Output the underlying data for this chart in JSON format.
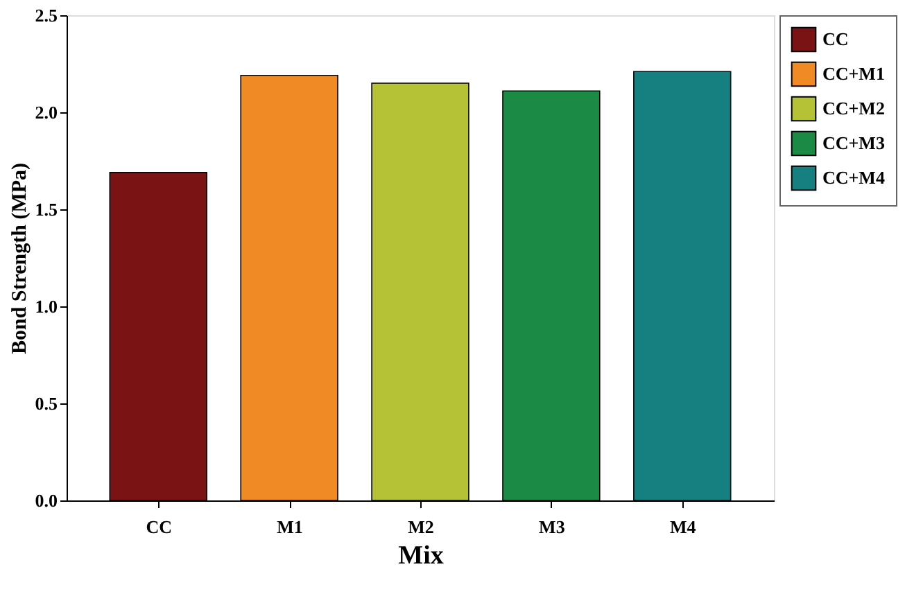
{
  "chart_data": {
    "type": "bar",
    "xlabel": "Mix",
    "ylabel": "Bond Strength (MPa)",
    "categories": [
      "CC",
      "M1",
      "M2",
      "M3",
      "M4"
    ],
    "series": [
      {
        "name": "CC",
        "color": "#7a1414",
        "values": [
          1.69,
          null,
          null,
          null,
          null
        ]
      },
      {
        "name": "CC+M1",
        "color": "#f08a24",
        "values": [
          null,
          2.19,
          null,
          null,
          null
        ]
      },
      {
        "name": "CC+M2",
        "color": "#b5c236",
        "values": [
          null,
          null,
          2.15,
          null,
          null
        ]
      },
      {
        "name": "CC+M3",
        "color": "#1b8a45",
        "values": [
          null,
          null,
          null,
          2.11,
          null
        ]
      },
      {
        "name": "CC+M4",
        "color": "#168080",
        "values": [
          null,
          null,
          null,
          null,
          2.21
        ]
      }
    ],
    "ylim": [
      0,
      2.5
    ],
    "yticks": [
      {
        "value": 0,
        "label": "0.0"
      },
      {
        "value": 0.5,
        "label": "0.5"
      },
      {
        "value": 1,
        "label": "1.0"
      },
      {
        "value": 1.5,
        "label": "1.5"
      },
      {
        "value": 2,
        "label": "2.0"
      },
      {
        "value": 2.5,
        "label": "2.5"
      }
    ],
    "grid": false,
    "legend": "right"
  }
}
